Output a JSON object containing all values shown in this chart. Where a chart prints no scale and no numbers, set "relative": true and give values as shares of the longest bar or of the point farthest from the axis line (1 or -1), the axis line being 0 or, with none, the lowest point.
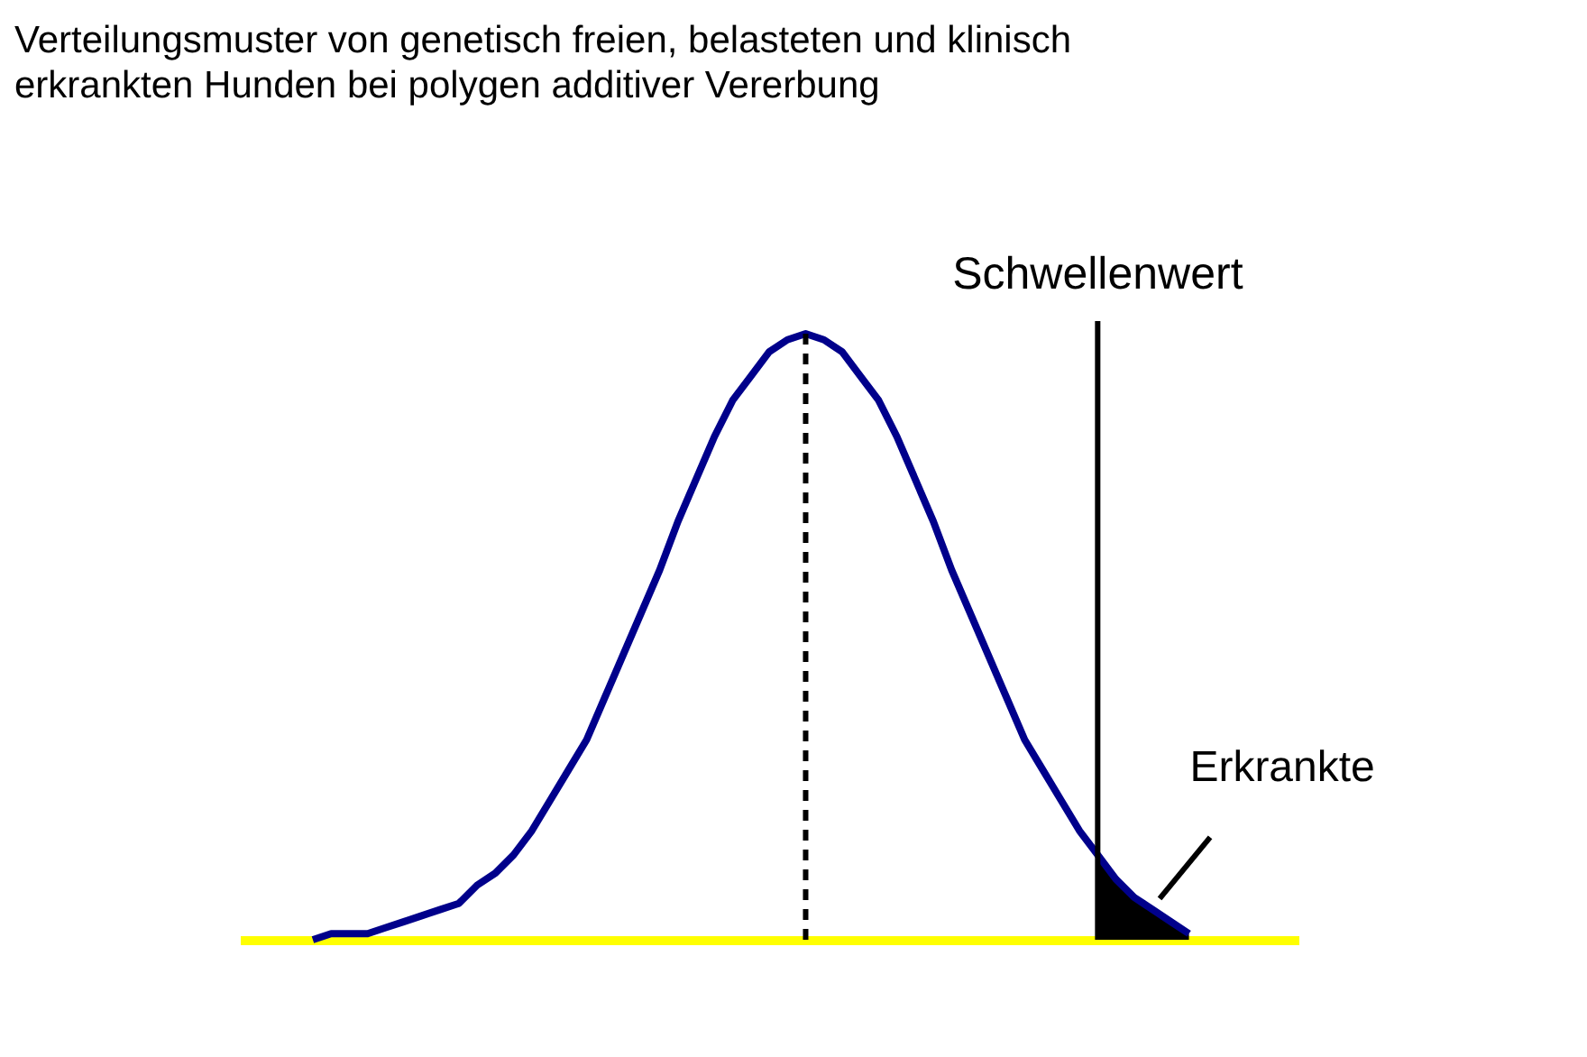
{
  "chart_data": {
    "type": "line",
    "title": "Verteilungsmuster von genetisch freien, belasteten und klinisch erkrankten Hunden bei polygen additiver Vererbung",
    "relative": true,
    "categories": [
      null,
      null,
      null,
      null,
      null,
      null,
      null,
      null,
      null,
      null,
      null,
      null,
      null,
      null,
      null,
      null,
      null,
      null,
      null,
      null,
      null,
      null,
      null,
      null,
      null,
      null,
      null,
      null,
      null,
      null,
      null,
      null,
      null,
      null,
      null,
      null,
      null,
      null,
      null,
      null,
      null,
      null,
      null,
      null,
      null,
      null,
      null,
      null,
      null
    ],
    "marker": "none",
    "line_style": "solid",
    "series": [
      {
        "color": "#00008b",
        "values": [
          0.0,
          0.01,
          0.01,
          0.01,
          0.02,
          0.03,
          0.04,
          0.05,
          0.06,
          0.09,
          0.11,
          0.14,
          0.18,
          0.23,
          0.28,
          0.33,
          0.4,
          0.47,
          0.54,
          0.61,
          0.69,
          0.76,
          0.83,
          0.89,
          0.93,
          0.97,
          0.99,
          1,
          0.99,
          0.97,
          0.93,
          0.89,
          0.83,
          0.76,
          0.69,
          0.61,
          0.54,
          0.47,
          0.4,
          0.33,
          0.28,
          0.23,
          0.18,
          0.14,
          0.1,
          0.07,
          0.05,
          0.03,
          0.01
        ]
      },
      {
        "type": "area",
        "color": "#000000",
        "values": [
          null,
          null,
          null,
          null,
          null,
          null,
          null,
          null,
          null,
          null,
          null,
          null,
          null,
          null,
          null,
          null,
          null,
          null,
          null,
          null,
          null,
          null,
          null,
          null,
          null,
          null,
          null,
          null,
          null,
          null,
          null,
          null,
          null,
          null,
          null,
          null,
          null,
          null,
          null,
          null,
          null,
          null,
          null,
          0.14,
          0.1,
          0.07,
          0.05,
          0.03,
          0.01
        ]
      }
    ],
    "annotations": [
      "Schwellenwert",
      "Erkrankte"
    ]
  }
}
